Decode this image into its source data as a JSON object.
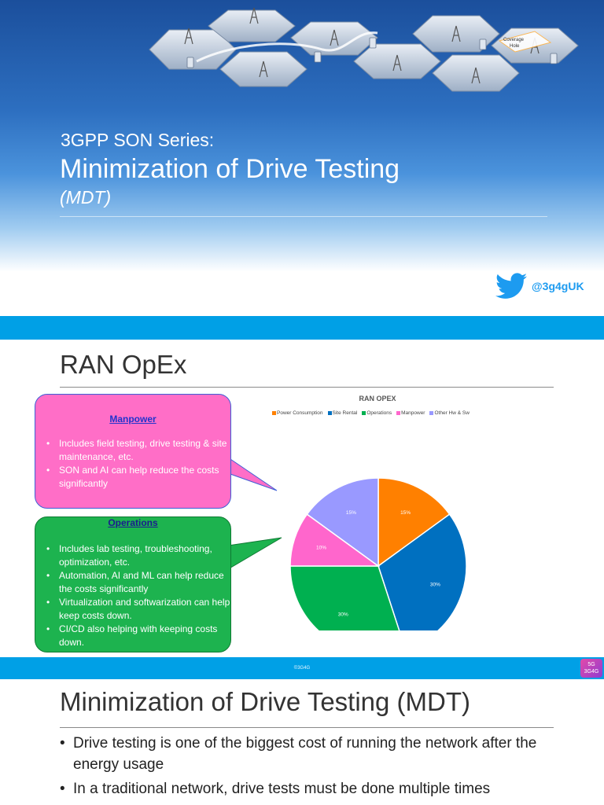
{
  "slide1": {
    "kicker": "3GPP SON Series:",
    "title": "Minimization of Drive Testing",
    "subtitle": "(MDT)",
    "twitter_handle": "@3g4gUK",
    "hex_labels": [
      "Coverage",
      "Hole"
    ],
    "twitter_icon": "twitter-bird-icon"
  },
  "slide2": {
    "title": "RAN OpEx",
    "manpower": {
      "heading": "Manpower",
      "bullets": [
        "Includes field testing, drive testing & site maintenance, etc.",
        "SON and AI can help reduce the costs significantly"
      ]
    },
    "operations": {
      "heading": "Operations",
      "bullets": [
        "Includes lab testing, troubleshooting, optimization, etc.",
        "Automation, AI and ML can help reduce the costs significantly",
        "Virtualization and softwarization can help keep costs down.",
        "CI/CD also helping with keeping costs down."
      ]
    },
    "footer": "©3G4G",
    "logo_text": [
      "5G",
      "3G4G"
    ]
  },
  "chart_data": {
    "type": "pie",
    "title": "RAN OPEX",
    "categories": [
      "Power Consumption",
      "Site Rental",
      "Operations",
      "Manpower",
      "Other Hw & Sw"
    ],
    "values": [
      15,
      30,
      30,
      10,
      15
    ],
    "labels": [
      "15%",
      "30%",
      "30%",
      "10%",
      "15%"
    ],
    "colors": [
      "#ff8000",
      "#0070c0",
      "#00b050",
      "#ff66cc",
      "#9999ff"
    ],
    "legend_position": "top"
  },
  "slide3": {
    "title": "Minimization of Drive Testing (MDT)",
    "bullets": [
      "Drive testing is one of the biggest cost of running the network after the energy usage",
      "In a traditional network, drive tests must be done multiple times"
    ]
  }
}
